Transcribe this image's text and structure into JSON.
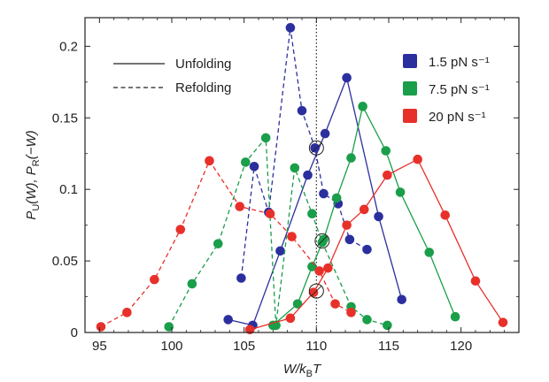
{
  "chart_data": {
    "type": "line",
    "xlabel": "W/k_BT",
    "ylabel": "P_U(W), P_R(−W)",
    "xlim": [
      94,
      124
    ],
    "ylim": [
      0,
      0.22
    ],
    "x_ticks": [
      "95",
      "100",
      "105",
      "110",
      "115",
      "120"
    ],
    "y_ticks": [
      "0",
      "0.05",
      "0.1",
      "0.15",
      "0.2"
    ],
    "grid": false,
    "vertical_reference_line": 110,
    "style_legend": [
      {
        "label": "Unfolding",
        "dash": "solid"
      },
      {
        "label": "Refolding",
        "dash": "dashed"
      }
    ],
    "legend_position": "top-right",
    "series": [
      {
        "name": "1.5 pN s⁻¹",
        "color": "#2b2f9e",
        "kind": "unfolding",
        "x": [
          103.9,
          105.6,
          107.5,
          109.4,
          110.6,
          112.1,
          114.3,
          115.9
        ],
        "y": [
          0.009,
          0.005,
          0.057,
          0.11,
          0.139,
          0.178,
          0.081,
          0.023
        ]
      },
      {
        "name": "1.5 pN s⁻¹",
        "color": "#2b2f9e",
        "kind": "refolding",
        "x": [
          104.8,
          105.7,
          106.7,
          108.2,
          109.0,
          109.9,
          110.5,
          111.5,
          112.3,
          113.5
        ],
        "y": [
          0.038,
          0.116,
          0.084,
          0.213,
          0.155,
          0.129,
          0.097,
          0.09,
          0.065,
          0.058
        ]
      },
      {
        "name": "7.5 pN s⁻¹",
        "color": "#1a9e4a",
        "kind": "unfolding",
        "x": [
          107.0,
          108.7,
          109.7,
          110.5,
          111.4,
          112.4,
          113.2,
          114.8,
          115.8,
          117.8,
          119.6
        ],
        "y": [
          0.005,
          0.02,
          0.046,
          0.065,
          0.094,
          0.122,
          0.158,
          0.127,
          0.098,
          0.056,
          0.011
        ]
      },
      {
        "name": "7.5 pN s⁻¹",
        "color": "#1a9e4a",
        "kind": "refolding",
        "x": [
          99.8,
          101.4,
          103.2,
          105.1,
          106.5,
          107.2,
          108.5,
          109.7,
          110.4,
          112.4,
          113.5,
          114.9
        ],
        "y": [
          0.004,
          0.034,
          0.062,
          0.119,
          0.136,
          0.005,
          0.115,
          0.083,
          0.063,
          0.018,
          0.009,
          0.005
        ]
      },
      {
        "name": "20 pN s⁻¹",
        "color": "#e8302a",
        "kind": "unfolding",
        "x": [
          105.4,
          108.2,
          109.8,
          110.8,
          112.1,
          113.3,
          114.9,
          117.0,
          118.9,
          121.0,
          122.9
        ],
        "y": [
          0.002,
          0.01,
          0.028,
          0.045,
          0.075,
          0.086,
          0.11,
          0.121,
          0.082,
          0.036,
          0.007
        ]
      },
      {
        "name": "20 pN s⁻¹",
        "color": "#e8302a",
        "kind": "refolding",
        "x": [
          95.1,
          96.9,
          98.8,
          100.6,
          102.6,
          104.7,
          106.8,
          108.3,
          110.2,
          111.3,
          112.4
        ],
        "y": [
          0.004,
          0.014,
          0.037,
          0.072,
          0.12,
          0.088,
          0.083,
          0.067,
          0.043,
          0.02,
          0.014
        ]
      }
    ],
    "crossing_circles": [
      {
        "x": 110.0,
        "y": 0.129
      },
      {
        "x": 110.4,
        "y": 0.064
      },
      {
        "x": 110.0,
        "y": 0.029
      }
    ]
  }
}
